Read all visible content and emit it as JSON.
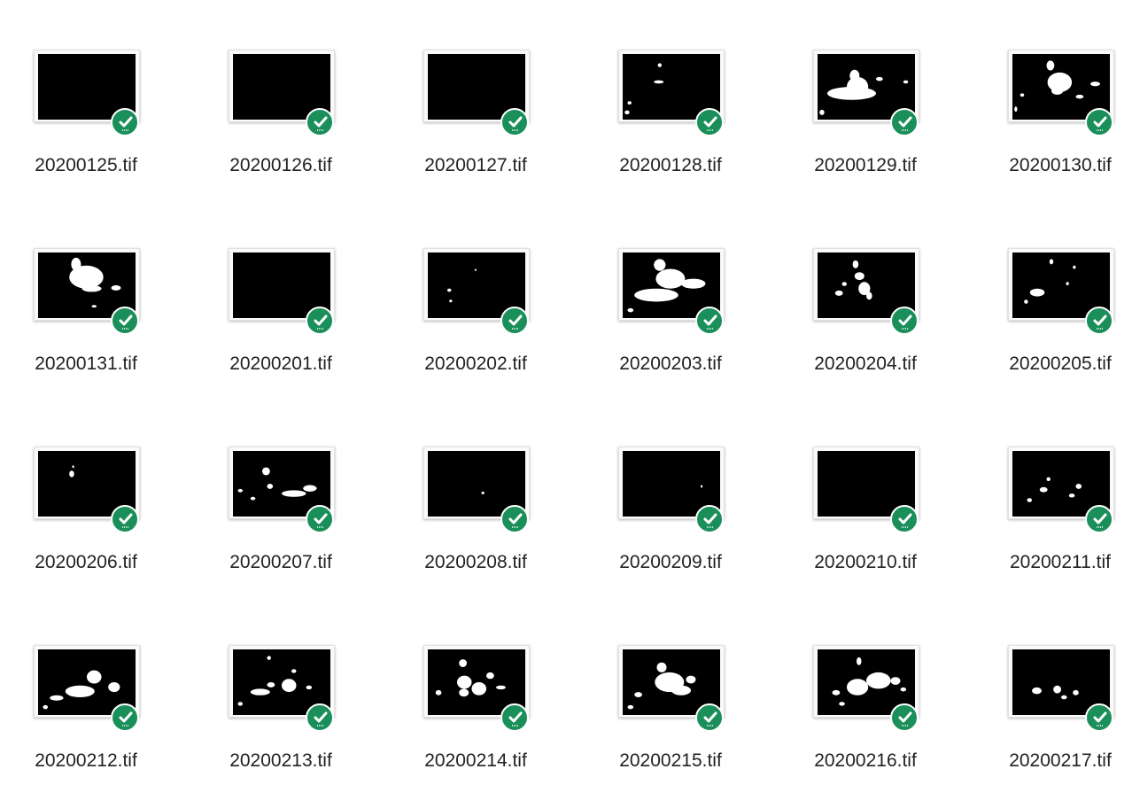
{
  "files": [
    {
      "name": "20200125.tif",
      "blobs": []
    },
    {
      "name": "20200126.tif",
      "blobs": []
    },
    {
      "name": "20200127.tif",
      "blobs": []
    },
    {
      "name": "20200128.tif",
      "blobs": [
        [
          0.36,
          0.14,
          0.04,
          0.06
        ],
        [
          0.32,
          0.4,
          0.1,
          0.05
        ],
        [
          0.05,
          0.72,
          0.04,
          0.05
        ],
        [
          0.02,
          0.86,
          0.05,
          0.06
        ]
      ]
    },
    {
      "name": "20200129.tif",
      "blobs": [
        [
          0.33,
          0.24,
          0.1,
          0.18
        ],
        [
          0.1,
          0.5,
          0.5,
          0.2
        ],
        [
          0.3,
          0.35,
          0.22,
          0.3
        ],
        [
          0.6,
          0.35,
          0.07,
          0.06
        ],
        [
          0.88,
          0.4,
          0.05,
          0.05
        ],
        [
          0.02,
          0.85,
          0.05,
          0.08
        ]
      ]
    },
    {
      "name": "20200130.tif",
      "blobs": [
        [
          0.35,
          0.1,
          0.08,
          0.15
        ],
        [
          0.36,
          0.28,
          0.25,
          0.3
        ],
        [
          0.4,
          0.5,
          0.12,
          0.12
        ],
        [
          0.65,
          0.62,
          0.08,
          0.06
        ],
        [
          0.8,
          0.42,
          0.1,
          0.07
        ],
        [
          0.08,
          0.6,
          0.04,
          0.05
        ],
        [
          0.02,
          0.8,
          0.03,
          0.08
        ]
      ]
    },
    {
      "name": "20200131.tif",
      "blobs": [
        [
          0.34,
          0.08,
          0.1,
          0.2
        ],
        [
          0.32,
          0.2,
          0.35,
          0.35
        ],
        [
          0.45,
          0.5,
          0.2,
          0.1
        ],
        [
          0.75,
          0.5,
          0.1,
          0.08
        ],
        [
          0.55,
          0.8,
          0.05,
          0.04
        ]
      ]
    },
    {
      "name": "20200201.tif",
      "blobs": []
    },
    {
      "name": "20200202.tif",
      "blobs": [
        [
          0.2,
          0.55,
          0.04,
          0.05
        ],
        [
          0.22,
          0.72,
          0.03,
          0.04
        ],
        [
          0.48,
          0.25,
          0.02,
          0.03
        ]
      ]
    },
    {
      "name": "20200203.tif",
      "blobs": [
        [
          0.32,
          0.1,
          0.12,
          0.18
        ],
        [
          0.34,
          0.25,
          0.3,
          0.3
        ],
        [
          0.12,
          0.55,
          0.45,
          0.2
        ],
        [
          0.6,
          0.4,
          0.25,
          0.15
        ],
        [
          0.05,
          0.85,
          0.06,
          0.06
        ]
      ]
    },
    {
      "name": "20200204.tif",
      "blobs": [
        [
          0.36,
          0.12,
          0.06,
          0.12
        ],
        [
          0.38,
          0.3,
          0.1,
          0.12
        ],
        [
          0.42,
          0.45,
          0.12,
          0.2
        ],
        [
          0.18,
          0.58,
          0.08,
          0.08
        ],
        [
          0.5,
          0.6,
          0.06,
          0.12
        ],
        [
          0.25,
          0.45,
          0.05,
          0.06
        ]
      ]
    },
    {
      "name": "20200205.tif",
      "blobs": [
        [
          0.38,
          0.1,
          0.04,
          0.08
        ],
        [
          0.18,
          0.55,
          0.15,
          0.12
        ],
        [
          0.12,
          0.72,
          0.04,
          0.06
        ],
        [
          0.55,
          0.45,
          0.03,
          0.05
        ],
        [
          0.62,
          0.2,
          0.03,
          0.05
        ]
      ]
    },
    {
      "name": "20200206.tif",
      "blobs": [
        [
          0.32,
          0.3,
          0.05,
          0.1
        ],
        [
          0.35,
          0.22,
          0.02,
          0.04
        ]
      ]
    },
    {
      "name": "20200207.tif",
      "blobs": [
        [
          0.3,
          0.25,
          0.08,
          0.12
        ],
        [
          0.35,
          0.5,
          0.06,
          0.08
        ],
        [
          0.5,
          0.6,
          0.25,
          0.1
        ],
        [
          0.72,
          0.52,
          0.14,
          0.1
        ],
        [
          0.05,
          0.58,
          0.05,
          0.05
        ],
        [
          0.18,
          0.7,
          0.05,
          0.05
        ]
      ]
    },
    {
      "name": "20200208.tif",
      "blobs": [
        [
          0.55,
          0.62,
          0.03,
          0.04
        ]
      ]
    },
    {
      "name": "20200209.tif",
      "blobs": [
        [
          0.8,
          0.52,
          0.02,
          0.04
        ]
      ]
    },
    {
      "name": "20200210.tif",
      "blobs": []
    },
    {
      "name": "20200211.tif",
      "blobs": [
        [
          0.28,
          0.55,
          0.08,
          0.08
        ],
        [
          0.15,
          0.72,
          0.05,
          0.06
        ],
        [
          0.65,
          0.5,
          0.06,
          0.08
        ],
        [
          0.58,
          0.65,
          0.06,
          0.06
        ],
        [
          0.35,
          0.4,
          0.04,
          0.06
        ]
      ]
    },
    {
      "name": "20200212.tif",
      "blobs": [
        [
          0.28,
          0.55,
          0.3,
          0.18
        ],
        [
          0.5,
          0.32,
          0.15,
          0.2
        ],
        [
          0.72,
          0.5,
          0.12,
          0.15
        ],
        [
          0.12,
          0.7,
          0.14,
          0.08
        ],
        [
          0.05,
          0.85,
          0.05,
          0.06
        ]
      ]
    },
    {
      "name": "20200213.tif",
      "blobs": [
        [
          0.18,
          0.6,
          0.2,
          0.1
        ],
        [
          0.35,
          0.5,
          0.08,
          0.08
        ],
        [
          0.5,
          0.45,
          0.15,
          0.2
        ],
        [
          0.6,
          0.3,
          0.05,
          0.06
        ],
        [
          0.35,
          0.1,
          0.04,
          0.06
        ],
        [
          0.05,
          0.8,
          0.05,
          0.06
        ],
        [
          0.75,
          0.55,
          0.06,
          0.06
        ]
      ]
    },
    {
      "name": "20200214.tif",
      "blobs": [
        [
          0.32,
          0.15,
          0.08,
          0.12
        ],
        [
          0.3,
          0.4,
          0.15,
          0.2
        ],
        [
          0.45,
          0.5,
          0.15,
          0.2
        ],
        [
          0.32,
          0.6,
          0.1,
          0.12
        ],
        [
          0.08,
          0.62,
          0.06,
          0.08
        ],
        [
          0.6,
          0.35,
          0.08,
          0.1
        ],
        [
          0.7,
          0.55,
          0.1,
          0.06
        ]
      ]
    },
    {
      "name": "20200215.tif",
      "blobs": [
        [
          0.35,
          0.2,
          0.1,
          0.15
        ],
        [
          0.33,
          0.35,
          0.3,
          0.3
        ],
        [
          0.5,
          0.55,
          0.2,
          0.15
        ],
        [
          0.65,
          0.4,
          0.1,
          0.12
        ],
        [
          0.12,
          0.65,
          0.08,
          0.08
        ],
        [
          0.05,
          0.85,
          0.06,
          0.06
        ]
      ]
    },
    {
      "name": "20200216.tif",
      "blobs": [
        [
          0.4,
          0.12,
          0.05,
          0.12
        ],
        [
          0.3,
          0.45,
          0.22,
          0.25
        ],
        [
          0.5,
          0.35,
          0.25,
          0.25
        ],
        [
          0.75,
          0.42,
          0.1,
          0.12
        ],
        [
          0.15,
          0.62,
          0.08,
          0.08
        ],
        [
          0.22,
          0.8,
          0.06,
          0.06
        ],
        [
          0.85,
          0.58,
          0.06,
          0.06
        ]
      ]
    },
    {
      "name": "20200217.tif",
      "blobs": [
        [
          0.2,
          0.58,
          0.1,
          0.1
        ],
        [
          0.42,
          0.55,
          0.08,
          0.12
        ],
        [
          0.5,
          0.7,
          0.06,
          0.06
        ],
        [
          0.62,
          0.62,
          0.06,
          0.08
        ]
      ]
    }
  ]
}
